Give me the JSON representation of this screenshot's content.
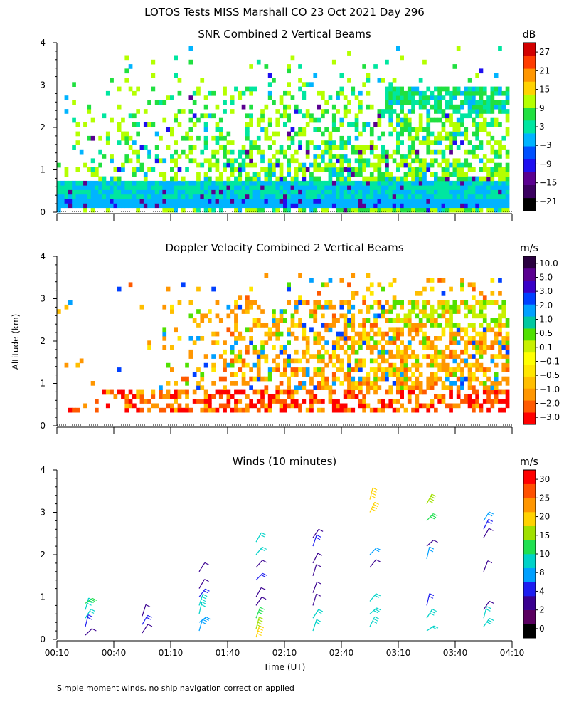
{
  "figure_title": "LOTOS Tests MISS Marshall CO  23 Oct 2021 Day 296",
  "ylabel": "Altitude (km)",
  "xlabel": "Time (UT)",
  "footnote": "Simple moment winds, no ship navigation correction applied",
  "x_ticks": [
    "00:10",
    "00:40",
    "01:10",
    "01:40",
    "02:10",
    "02:40",
    "03:10",
    "03:40",
    "04:10"
  ],
  "y_ticks": [
    "0",
    "1",
    "2",
    "3",
    "4"
  ],
  "chart_data": [
    {
      "type": "heatmap",
      "title": "SNR Combined 2 Vertical Beams",
      "xlabel": "Time (UT)",
      "ylabel": "Altitude (km)",
      "xlim": [
        "00:10",
        "04:10"
      ],
      "ylim": [
        0,
        4
      ],
      "colorbar": {
        "unit": "dB",
        "ticks": [
          "27",
          "21",
          "15",
          "9",
          "3",
          "−3",
          "−9",
          "−15",
          "−21"
        ],
        "colors": [
          "#000000",
          "#3a0060",
          "#5a0090",
          "#1e0ff0",
          "#0050ff",
          "#00b4ff",
          "#00e6a0",
          "#20e040",
          "#b4ff00",
          "#ffd200",
          "#ff9600",
          "#ff3c00",
          "#d20000"
        ]
      },
      "field": "snr",
      "features": {
        "ground_layer_km": [
          0.2,
          0.7
        ],
        "scatter_top_km": 3.9,
        "high_layer_km": [
          2.4,
          2.9
        ]
      }
    },
    {
      "type": "heatmap",
      "title": "Doppler Velocity Combined 2 Vertical Beams",
      "xlabel": "Time (UT)",
      "ylabel": "Altitude (km)",
      "xlim": [
        "00:10",
        "04:10"
      ],
      "ylim": [
        0,
        4
      ],
      "colorbar": {
        "unit": "m/s",
        "ticks": [
          "10.0",
          "5.0",
          "3.0",
          "2.0",
          "1.0",
          "0.5",
          "0.1",
          "−0.1",
          "−0.5",
          "−1.0",
          "−2.0",
          "−3.0"
        ],
        "colors": [
          "#ff0000",
          "#ff5a00",
          "#ff9600",
          "#ffbe00",
          "#ffe600",
          "#ffff00",
          "#c8f000",
          "#50e000",
          "#00c8a0",
          "#00a0ff",
          "#0040ff",
          "#3a00c8",
          "#5a0090",
          "#2a0040"
        ]
      },
      "field": "velocity",
      "features": {
        "low_band_km": [
          0.4,
          0.8
        ],
        "scatter_top_km": 3.6,
        "high_layer_km": [
          2.3,
          3.0
        ]
      }
    },
    {
      "type": "wind_barbs",
      "title": "Winds (10 minutes)",
      "xlabel": "Time (UT)",
      "ylabel": "Altitude (km)",
      "xlim": [
        "00:10",
        "04:10"
      ],
      "ylim": [
        0,
        4
      ],
      "colorbar": {
        "unit": "m/s",
        "ticks": [
          "30",
          "25",
          "20",
          "15",
          "10",
          "8",
          "4",
          "2",
          "0"
        ],
        "colors": [
          "#000000",
          "#5a0060",
          "#3a0090",
          "#1e1ef0",
          "#00a0ff",
          "#00d2c8",
          "#20e050",
          "#a0e000",
          "#ffd200",
          "#ff9600",
          "#ff5000",
          "#ff0000"
        ]
      },
      "profiles": [
        {
          "time": "00:25",
          "barbs": [
            [
              0.1,
              4
            ],
            [
              0.3,
              8
            ],
            [
              0.5,
              12
            ],
            [
              0.7,
              14
            ],
            [
              0.85,
              15
            ]
          ]
        },
        {
          "time": "00:55",
          "barbs": [
            [
              0.15,
              6
            ],
            [
              0.35,
              9
            ],
            [
              0.55,
              6
            ]
          ]
        },
        {
          "time": "01:25",
          "barbs": [
            [
              0.2,
              10
            ],
            [
              0.4,
              11
            ],
            [
              0.6,
              12
            ],
            [
              0.8,
              13
            ],
            [
              1.0,
              8
            ],
            [
              1.2,
              5
            ],
            [
              1.6,
              5
            ]
          ]
        },
        {
          "time": "01:55",
          "barbs": [
            [
              0.05,
              20
            ],
            [
              0.25,
              18
            ],
            [
              0.5,
              15
            ],
            [
              0.8,
              6
            ],
            [
              1.0,
              4
            ],
            [
              1.4,
              8
            ],
            [
              1.7,
              6
            ],
            [
              2.0,
              12
            ],
            [
              2.3,
              12
            ]
          ]
        },
        {
          "time": "02:25",
          "barbs": [
            [
              0.2,
              12
            ],
            [
              0.5,
              12
            ],
            [
              0.8,
              6
            ],
            [
              1.1,
              4
            ],
            [
              1.5,
              5
            ],
            [
              1.8,
              6
            ],
            [
              2.2,
              8
            ],
            [
              2.4,
              6
            ]
          ]
        },
        {
          "time": "02:55",
          "barbs": [
            [
              0.3,
              14
            ],
            [
              0.6,
              14
            ],
            [
              0.9,
              12
            ],
            [
              1.7,
              5
            ],
            [
              2.0,
              10
            ],
            [
              3.0,
              22
            ],
            [
              3.3,
              20
            ]
          ]
        },
        {
          "time": "03:25",
          "barbs": [
            [
              0.2,
              12
            ],
            [
              0.5,
              14
            ],
            [
              0.8,
              8
            ],
            [
              1.9,
              10
            ],
            [
              2.2,
              5
            ],
            [
              2.8,
              16
            ],
            [
              3.2,
              18
            ]
          ]
        },
        {
          "time": "03:55",
          "barbs": [
            [
              0.3,
              14
            ],
            [
              0.5,
              12
            ],
            [
              0.7,
              6
            ],
            [
              1.6,
              4
            ],
            [
              2.4,
              6
            ],
            [
              2.6,
              8
            ],
            [
              2.8,
              10
            ]
          ]
        }
      ]
    }
  ]
}
